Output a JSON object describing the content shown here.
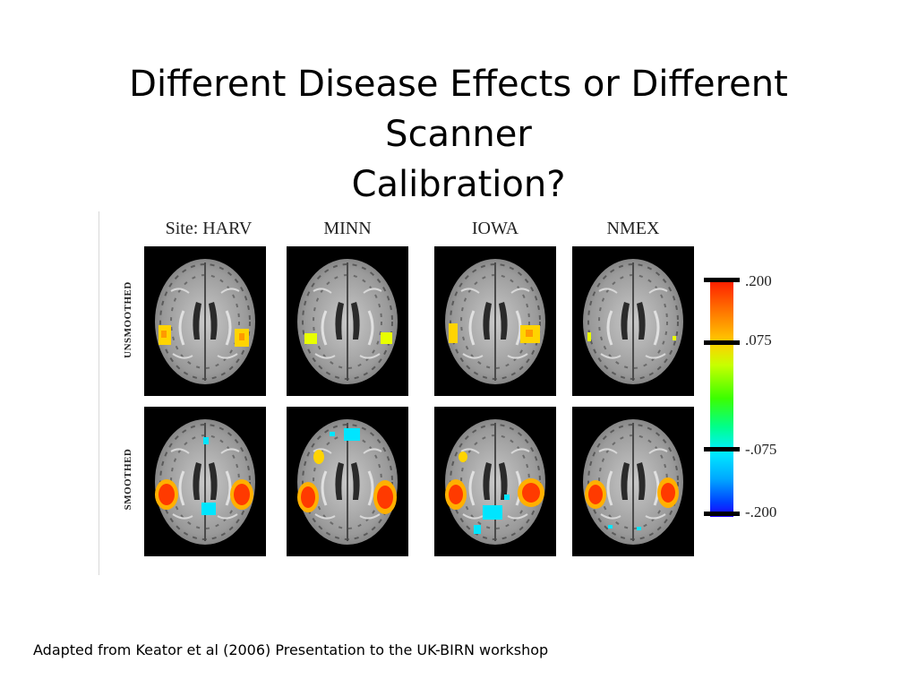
{
  "slide": {
    "title_line1": "Different Disease Effects or Different Scanner",
    "title_line2": "Calibration?",
    "caption": "Adapted from Keator et al (2006) Presentation to the UK-BIRN workshop"
  },
  "figure": {
    "sites": [
      "Site: HARV",
      "MINN",
      "IOWA",
      "NMEX"
    ],
    "rows": [
      "UNSMOOTHED",
      "SMOOTHED"
    ],
    "colorbar": {
      "ticks": [
        ".200",
        ".075",
        "-.075",
        "-.200"
      ],
      "colors": {
        "top": "#ff1a00",
        "upper": "#ffd000",
        "mid": "#3cff00",
        "lower": "#00f0ff",
        "bottom": "#2000ff"
      }
    }
  }
}
